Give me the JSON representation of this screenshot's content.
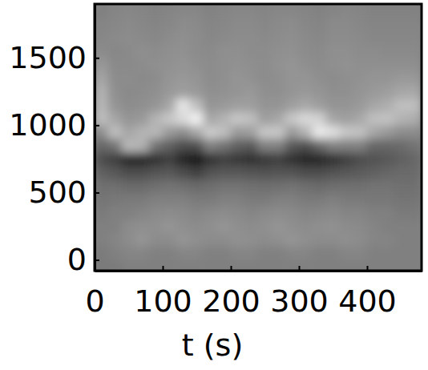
{
  "chart_data": {
    "type": "heatmap",
    "x_label": "t (s)",
    "xlim": [
      0,
      480
    ],
    "ylim": [
      -80,
      1900
    ],
    "xticks": [
      0,
      100,
      200,
      300,
      400
    ],
    "yticks": [
      0,
      500,
      1000,
      1500
    ],
    "zlim": [
      0,
      1
    ],
    "x_edges": [
      0,
      20,
      40,
      60,
      80,
      100,
      120,
      140,
      160,
      180,
      200,
      220,
      240,
      260,
      280,
      300,
      320,
      340,
      360,
      380,
      400,
      420,
      440,
      460,
      480
    ],
    "y_edges": [
      -100,
      0,
      100,
      200,
      300,
      400,
      500,
      600,
      700,
      800,
      900,
      1000,
      1100,
      1200,
      1300,
      1400,
      1500,
      1600,
      1700,
      1800,
      1900
    ],
    "z": [
      [
        0.48,
        0.48,
        0.5,
        0.5,
        0.5,
        0.5,
        0.5,
        0.5,
        0.5,
        0.5,
        0.5,
        0.5,
        0.5,
        0.5,
        0.5,
        0.5,
        0.5,
        0.5,
        0.5,
        0.5,
        0.5,
        0.5,
        0.5,
        0.5
      ],
      [
        0.48,
        0.5,
        0.52,
        0.52,
        0.5,
        0.5,
        0.52,
        0.52,
        0.5,
        0.5,
        0.52,
        0.52,
        0.5,
        0.5,
        0.52,
        0.52,
        0.5,
        0.5,
        0.52,
        0.52,
        0.5,
        0.5,
        0.5,
        0.5
      ],
      [
        0.5,
        0.52,
        0.55,
        0.58,
        0.55,
        0.55,
        0.58,
        0.56,
        0.55,
        0.55,
        0.57,
        0.56,
        0.55,
        0.56,
        0.58,
        0.56,
        0.55,
        0.55,
        0.56,
        0.55,
        0.52,
        0.52,
        0.5,
        0.5
      ],
      [
        0.5,
        0.5,
        0.55,
        0.56,
        0.56,
        0.58,
        0.56,
        0.55,
        0.56,
        0.58,
        0.56,
        0.55,
        0.56,
        0.58,
        0.56,
        0.55,
        0.56,
        0.57,
        0.55,
        0.54,
        0.52,
        0.5,
        0.5,
        0.5
      ],
      [
        0.48,
        0.5,
        0.5,
        0.52,
        0.54,
        0.55,
        0.54,
        0.52,
        0.54,
        0.55,
        0.54,
        0.52,
        0.54,
        0.55,
        0.54,
        0.52,
        0.53,
        0.54,
        0.52,
        0.52,
        0.5,
        0.5,
        0.48,
        0.48
      ],
      [
        0.46,
        0.47,
        0.48,
        0.48,
        0.5,
        0.5,
        0.5,
        0.48,
        0.48,
        0.5,
        0.5,
        0.48,
        0.48,
        0.5,
        0.5,
        0.48,
        0.48,
        0.5,
        0.48,
        0.48,
        0.47,
        0.47,
        0.46,
        0.46
      ],
      [
        0.44,
        0.44,
        0.42,
        0.42,
        0.44,
        0.45,
        0.44,
        0.42,
        0.43,
        0.45,
        0.45,
        0.44,
        0.43,
        0.44,
        0.45,
        0.43,
        0.42,
        0.43,
        0.44,
        0.44,
        0.45,
        0.45,
        0.44,
        0.44
      ],
      [
        0.38,
        0.35,
        0.3,
        0.3,
        0.33,
        0.35,
        0.3,
        0.25,
        0.32,
        0.35,
        0.35,
        0.33,
        0.32,
        0.33,
        0.33,
        0.3,
        0.3,
        0.32,
        0.35,
        0.36,
        0.38,
        0.4,
        0.42,
        0.42
      ],
      [
        0.3,
        0.25,
        0.15,
        0.15,
        0.2,
        0.25,
        0.15,
        0.08,
        0.2,
        0.25,
        0.22,
        0.2,
        0.22,
        0.25,
        0.2,
        0.15,
        0.15,
        0.2,
        0.25,
        0.3,
        0.32,
        0.35,
        0.38,
        0.4
      ],
      [
        0.4,
        0.45,
        0.72,
        0.7,
        0.45,
        0.38,
        0.3,
        0.3,
        0.5,
        0.45,
        0.38,
        0.35,
        0.5,
        0.5,
        0.35,
        0.3,
        0.4,
        0.5,
        0.5,
        0.5,
        0.4,
        0.4,
        0.42,
        0.45
      ],
      [
        0.55,
        0.75,
        0.65,
        0.7,
        0.72,
        0.6,
        0.55,
        0.65,
        0.8,
        0.75,
        0.6,
        0.62,
        0.78,
        0.78,
        0.6,
        0.7,
        0.92,
        0.88,
        0.78,
        0.76,
        0.65,
        0.6,
        0.55,
        0.55
      ],
      [
        0.75,
        0.65,
        0.58,
        0.6,
        0.7,
        0.78,
        0.85,
        0.95,
        0.65,
        0.7,
        0.78,
        0.75,
        0.62,
        0.65,
        0.78,
        0.85,
        0.82,
        0.65,
        0.62,
        0.66,
        0.75,
        0.76,
        0.7,
        0.68
      ],
      [
        0.72,
        0.58,
        0.55,
        0.56,
        0.58,
        0.65,
        0.9,
        0.75,
        0.58,
        0.6,
        0.62,
        0.62,
        0.58,
        0.58,
        0.62,
        0.66,
        0.62,
        0.58,
        0.58,
        0.6,
        0.65,
        0.68,
        0.75,
        0.75
      ],
      [
        0.7,
        0.56,
        0.54,
        0.55,
        0.56,
        0.6,
        0.62,
        0.6,
        0.56,
        0.57,
        0.58,
        0.6,
        0.56,
        0.56,
        0.58,
        0.6,
        0.58,
        0.56,
        0.56,
        0.58,
        0.6,
        0.62,
        0.65,
        0.66
      ],
      [
        0.65,
        0.55,
        0.55,
        0.54,
        0.55,
        0.58,
        0.6,
        0.58,
        0.55,
        0.56,
        0.58,
        0.57,
        0.55,
        0.56,
        0.58,
        0.58,
        0.56,
        0.55,
        0.56,
        0.57,
        0.58,
        0.58,
        0.6,
        0.6
      ],
      [
        0.6,
        0.54,
        0.54,
        0.55,
        0.56,
        0.57,
        0.58,
        0.56,
        0.55,
        0.56,
        0.57,
        0.56,
        0.55,
        0.57,
        0.58,
        0.56,
        0.55,
        0.56,
        0.57,
        0.56,
        0.56,
        0.56,
        0.56,
        0.56
      ],
      [
        0.55,
        0.53,
        0.54,
        0.56,
        0.55,
        0.56,
        0.57,
        0.55,
        0.54,
        0.56,
        0.56,
        0.55,
        0.55,
        0.56,
        0.57,
        0.55,
        0.54,
        0.56,
        0.56,
        0.55,
        0.55,
        0.54,
        0.54,
        0.54
      ],
      [
        0.53,
        0.54,
        0.55,
        0.54,
        0.53,
        0.55,
        0.56,
        0.55,
        0.53,
        0.54,
        0.55,
        0.55,
        0.54,
        0.55,
        0.56,
        0.54,
        0.53,
        0.55,
        0.55,
        0.54,
        0.53,
        0.53,
        0.53,
        0.53
      ],
      [
        0.52,
        0.53,
        0.54,
        0.53,
        0.52,
        0.53,
        0.55,
        0.54,
        0.52,
        0.53,
        0.54,
        0.54,
        0.53,
        0.54,
        0.55,
        0.53,
        0.52,
        0.54,
        0.54,
        0.53,
        0.52,
        0.52,
        0.52,
        0.52
      ],
      [
        0.5,
        0.52,
        0.53,
        0.52,
        0.51,
        0.52,
        0.53,
        0.53,
        0.51,
        0.52,
        0.53,
        0.53,
        0.52,
        0.53,
        0.53,
        0.52,
        0.51,
        0.52,
        0.53,
        0.52,
        0.51,
        0.51,
        0.51,
        0.51
      ]
    ]
  }
}
